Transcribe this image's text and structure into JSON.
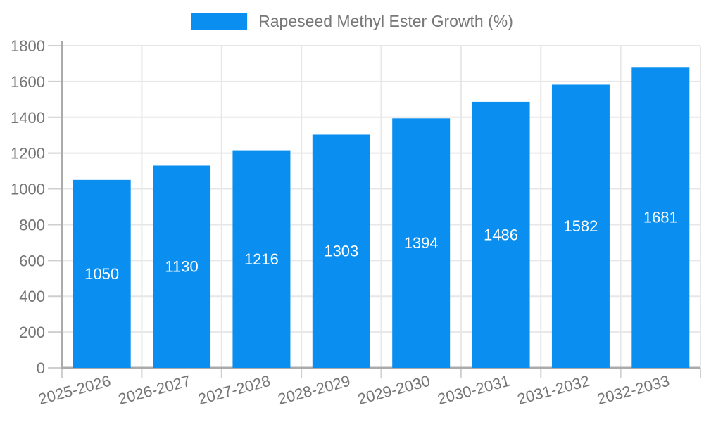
{
  "chart_data": {
    "type": "bar",
    "title": "",
    "legend": "Rapeseed Methyl Ester Growth (%)",
    "legend_position": "top-center",
    "categories": [
      "2025-2026",
      "2026-2027",
      "2027-2028",
      "2028-2029",
      "2029-2030",
      "2030-2031",
      "2031-2032",
      "2032-2033"
    ],
    "values": [
      1050,
      1130,
      1216,
      1303,
      1394,
      1486,
      1582,
      1681
    ],
    "xlabel": "",
    "ylabel": "",
    "ylim": [
      0,
      1800
    ],
    "ytick_step": 200,
    "ytick_labels": [
      "0",
      "200",
      "400",
      "600",
      "800",
      "1000",
      "1200",
      "1400",
      "1600",
      "1800"
    ],
    "grid": true,
    "value_labels_inside_bars": true,
    "x_label_rotation_deg": -15,
    "colors": {
      "bar": "#0a8ff0",
      "bar_value_text": "#ffffff",
      "grid": "#e7e7e7",
      "tick_mark": "#cfcfcf",
      "axis_line": "#ababab",
      "tick_text": "#757575",
      "legend_text": "#777777"
    }
  }
}
